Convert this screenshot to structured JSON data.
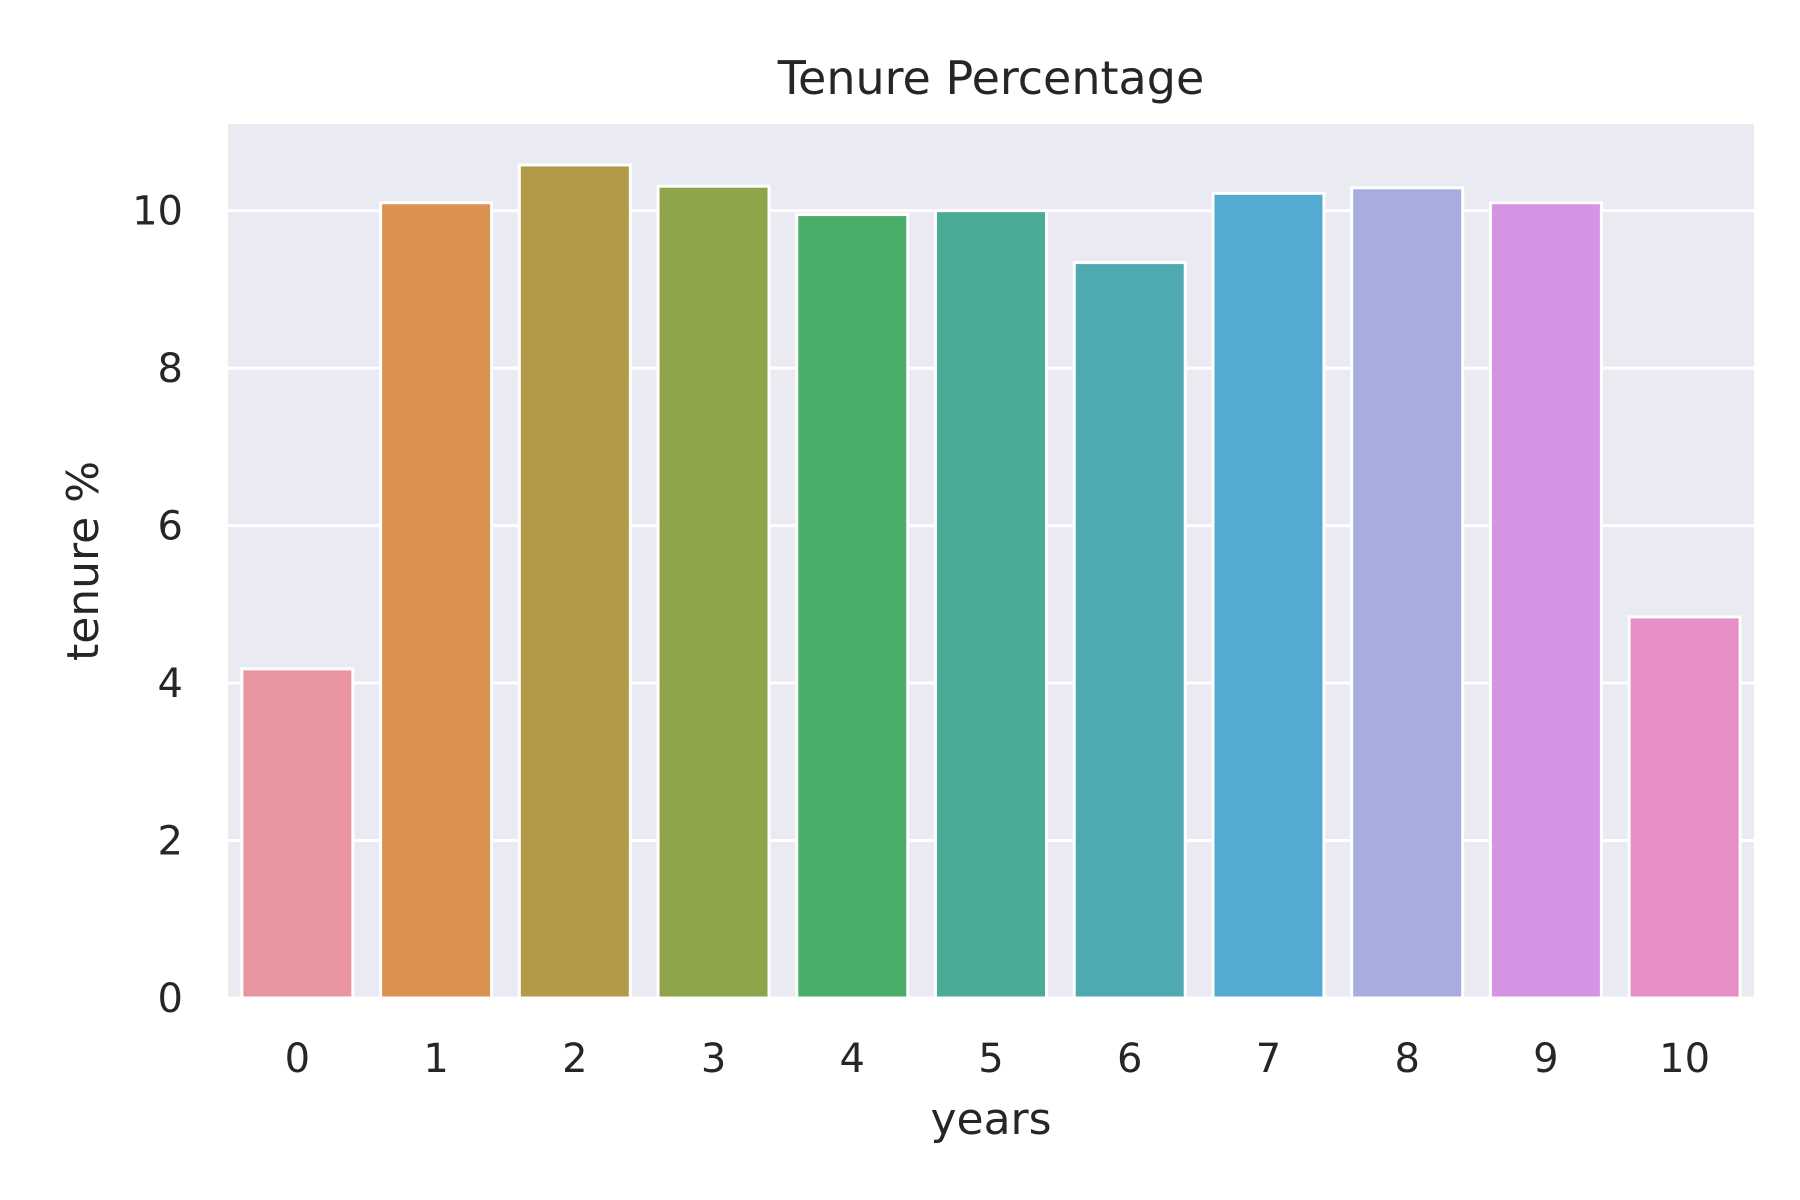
{
  "chart_data": {
    "type": "bar",
    "title": "Tenure Percentage",
    "xlabel": "years",
    "ylabel": "tenure %",
    "categories": [
      "0",
      "1",
      "2",
      "3",
      "4",
      "5",
      "6",
      "7",
      "8",
      "9",
      "10"
    ],
    "values": [
      4.18,
      10.1,
      10.58,
      10.31,
      9.95,
      10.0,
      9.34,
      10.22,
      10.29,
      10.1,
      4.84
    ],
    "ylim": [
      0,
      11.1
    ],
    "yticks": [
      "0",
      "2",
      "4",
      "6",
      "8",
      "10"
    ],
    "grid": true,
    "legend": "none",
    "colors": {
      "background": "#eaeaf2",
      "grid": "#ffffff",
      "text": "#262626",
      "bars": [
        "#e8959f",
        "#db9150",
        "#b29a48",
        "#8ea448",
        "#4aae68",
        "#4aab97",
        "#4eaab0",
        "#53abd1",
        "#a7addf",
        "#d493e3",
        "#e78ec6"
      ]
    }
  }
}
